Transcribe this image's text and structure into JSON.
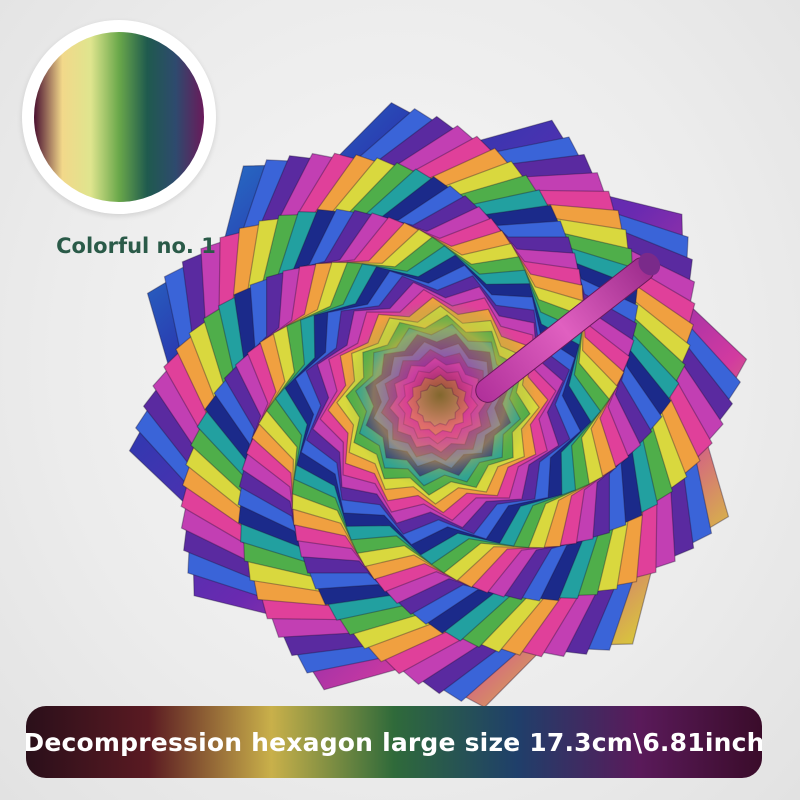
{
  "swatch": {
    "label": "Colorful no. 1",
    "colors": [
      "#4a1030",
      "#f2d88a",
      "#dfe58e",
      "#6aa84a",
      "#1f5a4e",
      "#2e4a6e",
      "#6a1a5a"
    ]
  },
  "banner": {
    "text": "Decompression hexagon large size 17.3cm\\6.81inch",
    "colors": [
      "#2a0f1a",
      "#5a1a22",
      "#c9b04a",
      "#2f6a3a",
      "#1f3f6a",
      "#5a1a5a",
      "#3a0c2a"
    ]
  },
  "product": {
    "name": "rainbow-spiral-fidget",
    "palette": [
      "#1b2a8a",
      "#3a64d8",
      "#5a2aa0",
      "#c23fb3",
      "#e0409a",
      "#f0a040",
      "#d9d83e",
      "#4fae4a",
      "#22a0a0"
    ]
  }
}
